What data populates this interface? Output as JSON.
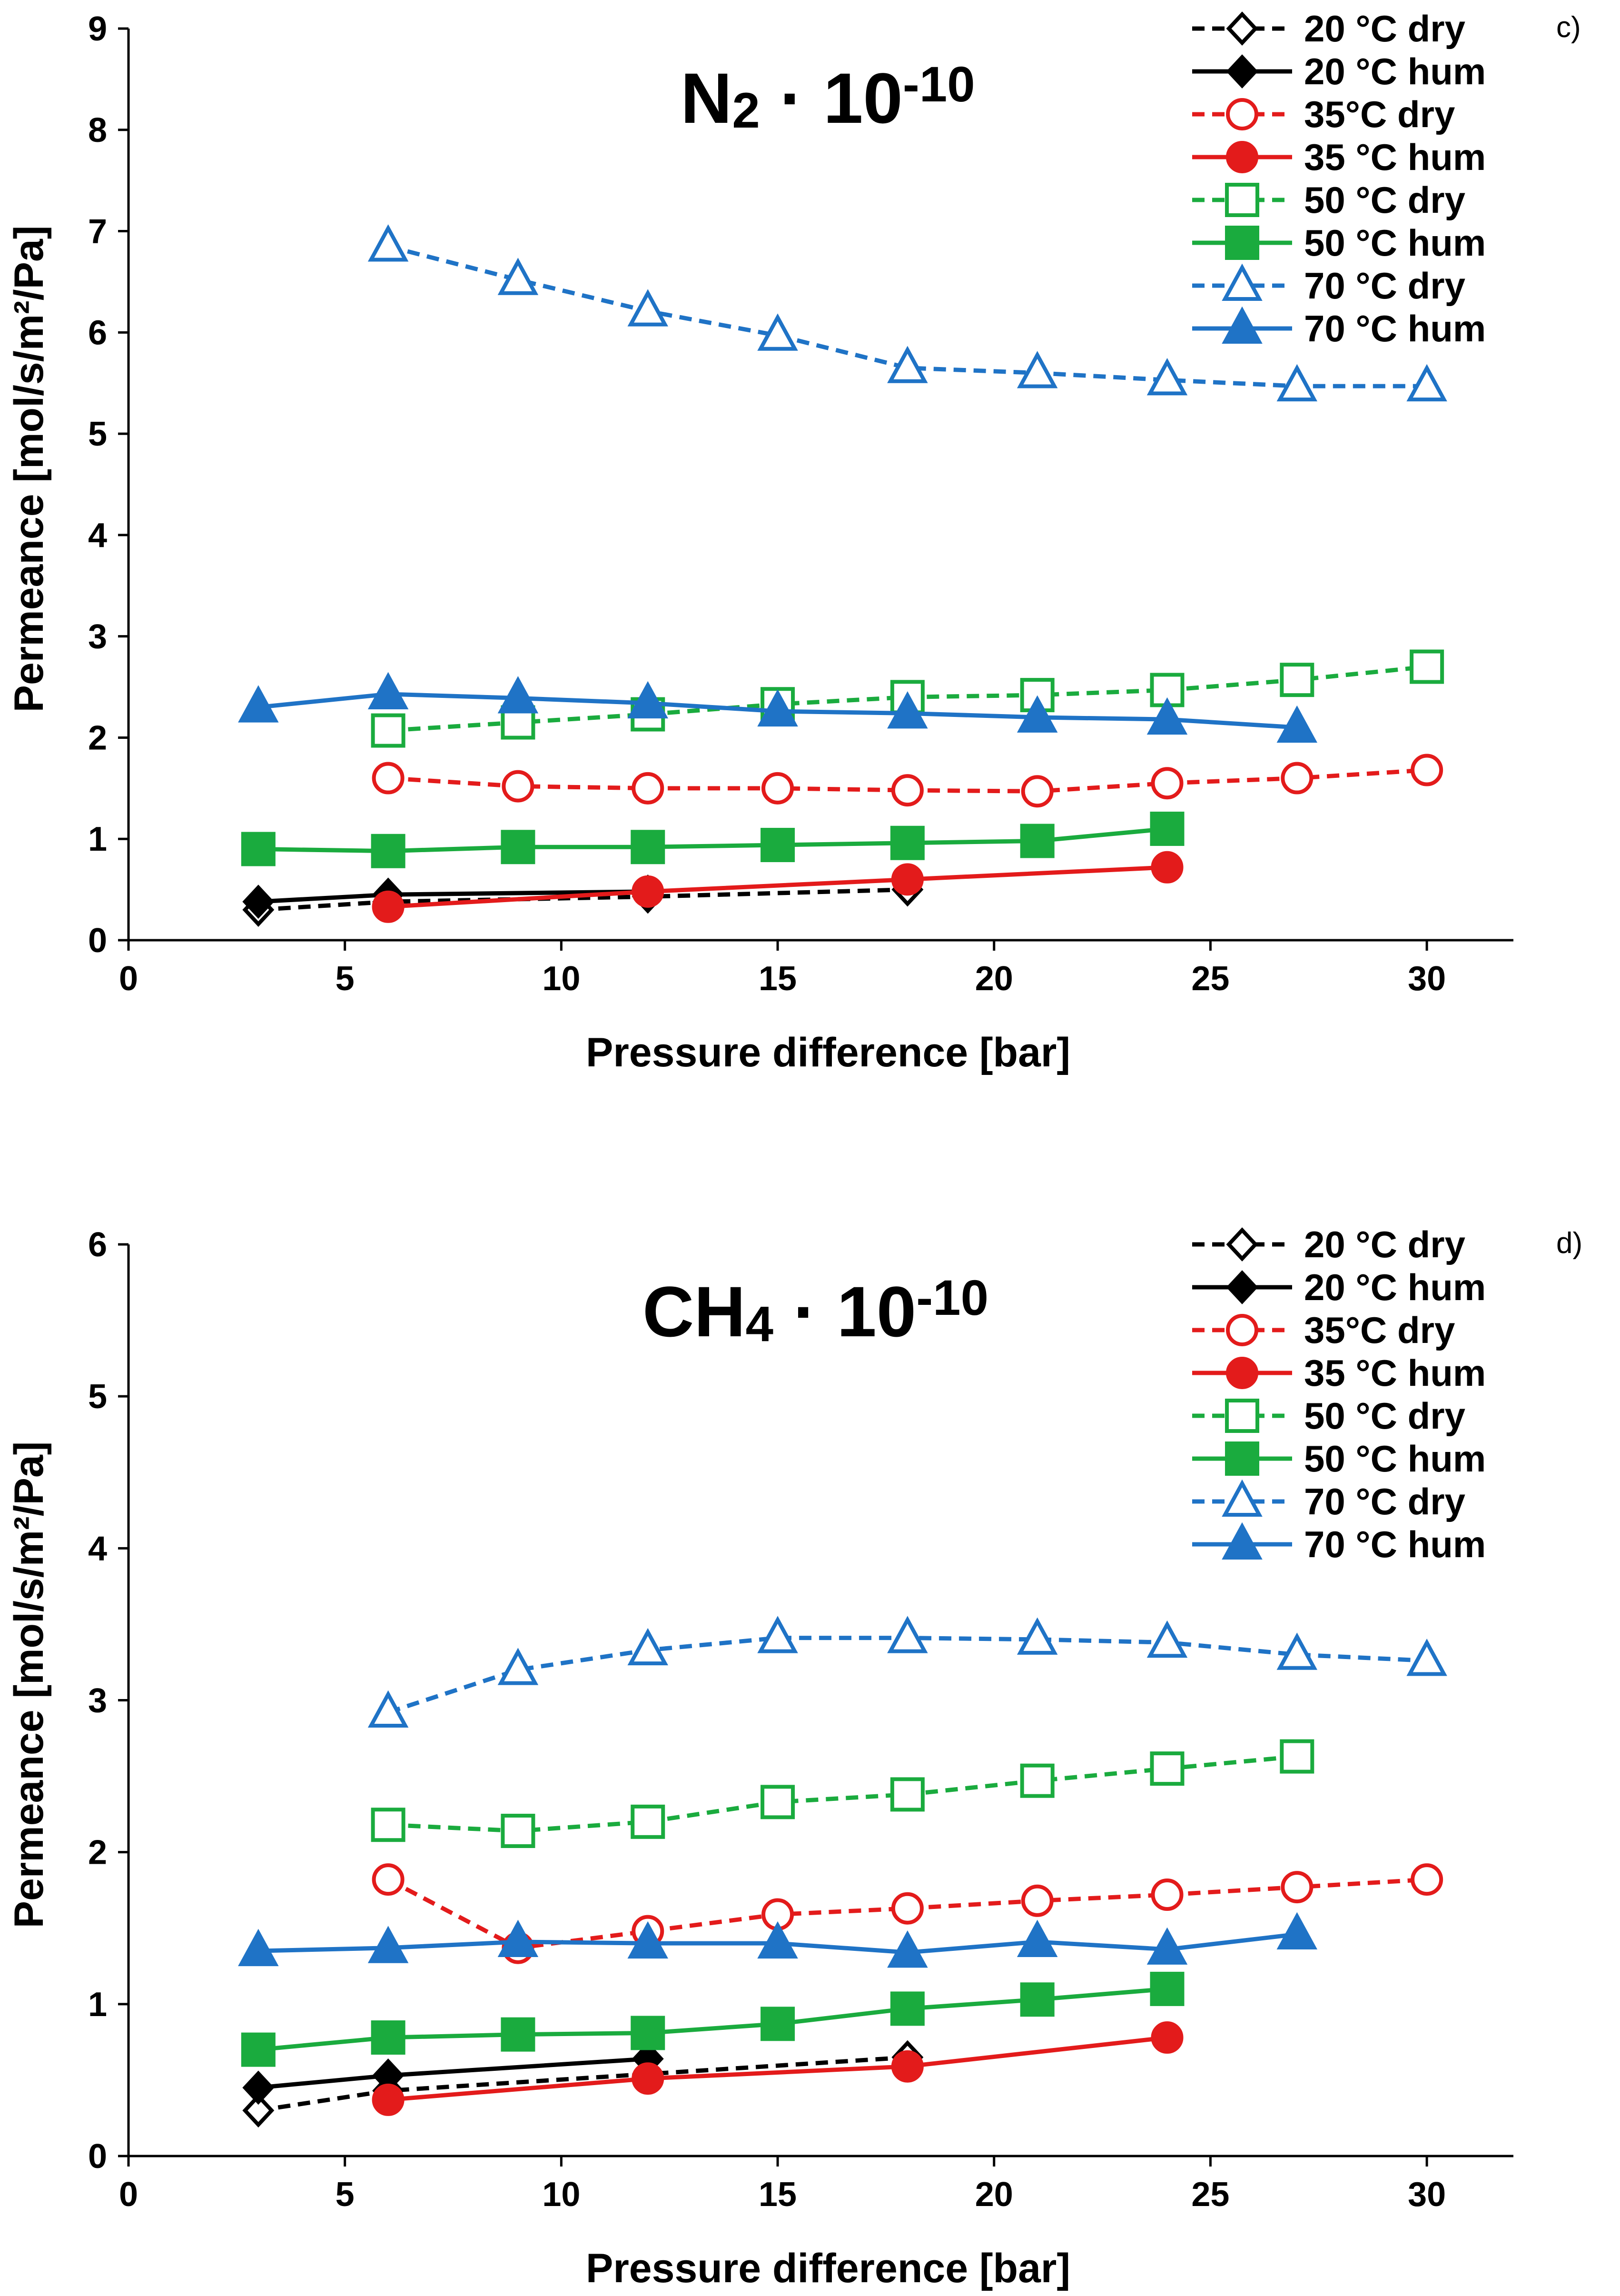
{
  "chart_data": [
    {
      "type": "line",
      "panel_label": "c)",
      "title": {
        "main": "N",
        "sub": "2",
        "mid": " · 10",
        "sup": "-10"
      },
      "xlabel": "Pressure difference [bar]",
      "ylabel": "Permeance [mol/s/m²/Pa]",
      "xlim": [
        0,
        32
      ],
      "ylim": [
        0,
        9
      ],
      "xticks": [
        0,
        5,
        10,
        15,
        20,
        25,
        30
      ],
      "yticks": [
        0,
        1,
        2,
        3,
        4,
        5,
        6,
        7,
        8,
        9
      ],
      "legend_position": "top-right",
      "series": [
        {
          "name": "20 °C dry",
          "color": "#000000",
          "dashed": true,
          "marker": "diamond",
          "filled": false,
          "x": [
            3,
            6,
            12,
            18
          ],
          "y": [
            0.3,
            0.38,
            0.43,
            0.5
          ]
        },
        {
          "name": "20 °C hum",
          "color": "#000000",
          "dashed": false,
          "marker": "diamond",
          "filled": true,
          "x": [
            3,
            6,
            12
          ],
          "y": [
            0.38,
            0.45,
            0.48
          ]
        },
        {
          "name": "35°C dry",
          "color": "#e31b1b",
          "dashed": true,
          "marker": "circle",
          "filled": false,
          "x": [
            6,
            9,
            12,
            15,
            18,
            21,
            24,
            27,
            30
          ],
          "y": [
            1.6,
            1.52,
            1.5,
            1.5,
            1.48,
            1.47,
            1.55,
            1.6,
            1.68
          ]
        },
        {
          "name": "35 °C hum",
          "color": "#e31b1b",
          "dashed": false,
          "marker": "circle",
          "filled": true,
          "x": [
            6,
            12,
            18,
            24
          ],
          "y": [
            0.33,
            0.48,
            0.6,
            0.72
          ]
        },
        {
          "name": "50 °C dry",
          "color": "#1aab3e",
          "dashed": true,
          "marker": "square",
          "filled": false,
          "x": [
            6,
            9,
            12,
            15,
            18,
            21,
            24,
            27,
            30
          ],
          "y": [
            2.07,
            2.15,
            2.23,
            2.33,
            2.4,
            2.42,
            2.47,
            2.57,
            2.7
          ]
        },
        {
          "name": "50 °C hum",
          "color": "#1aab3e",
          "dashed": false,
          "marker": "square",
          "filled": true,
          "x": [
            3,
            6,
            9,
            12,
            15,
            18,
            21,
            24
          ],
          "y": [
            0.9,
            0.88,
            0.92,
            0.92,
            0.94,
            0.96,
            0.98,
            1.1
          ]
        },
        {
          "name": "70 °C dry",
          "color": "#1f73c6",
          "dashed": true,
          "marker": "triangle",
          "filled": false,
          "x": [
            6,
            9,
            12,
            15,
            18,
            21,
            24,
            27,
            30
          ],
          "y": [
            6.85,
            6.52,
            6.21,
            5.97,
            5.65,
            5.6,
            5.53,
            5.47,
            5.47
          ]
        },
        {
          "name": "70 °C hum",
          "color": "#1f73c6",
          "dashed": false,
          "marker": "triangle",
          "filled": true,
          "x": [
            3,
            6,
            9,
            12,
            15,
            18,
            21,
            24,
            27
          ],
          "y": [
            2.3,
            2.43,
            2.39,
            2.34,
            2.26,
            2.24,
            2.2,
            2.18,
            2.1
          ]
        }
      ]
    },
    {
      "type": "line",
      "panel_label": "d)",
      "title": {
        "main": "CH",
        "sub": "4",
        "mid": " · 10",
        "sup": "-10"
      },
      "xlabel": "Pressure difference [bar]",
      "ylabel": "Permeance [mol/s/m²/Pa]",
      "xlim": [
        0,
        32
      ],
      "ylim": [
        0,
        6
      ],
      "xticks": [
        0,
        5,
        10,
        15,
        20,
        25,
        30
      ],
      "yticks": [
        0,
        1,
        2,
        3,
        4,
        5,
        6
      ],
      "legend_position": "top-right",
      "series": [
        {
          "name": "20 °C dry",
          "color": "#000000",
          "dashed": true,
          "marker": "diamond",
          "filled": false,
          "x": [
            3,
            6,
            12,
            18
          ],
          "y": [
            0.3,
            0.43,
            0.54,
            0.65
          ]
        },
        {
          "name": "20 °C hum",
          "color": "#000000",
          "dashed": false,
          "marker": "diamond",
          "filled": true,
          "x": [
            3,
            6,
            12
          ],
          "y": [
            0.45,
            0.53,
            0.64
          ]
        },
        {
          "name": "35°C dry",
          "color": "#e31b1b",
          "dashed": true,
          "marker": "circle",
          "filled": false,
          "x": [
            6,
            9,
            12,
            15,
            18,
            21,
            24,
            27,
            30
          ],
          "y": [
            1.82,
            1.37,
            1.48,
            1.59,
            1.63,
            1.68,
            1.72,
            1.77,
            1.82
          ]
        },
        {
          "name": "35 °C hum",
          "color": "#e31b1b",
          "dashed": false,
          "marker": "circle",
          "filled": true,
          "x": [
            6,
            12,
            18,
            24
          ],
          "y": [
            0.37,
            0.51,
            0.59,
            0.78
          ]
        },
        {
          "name": "50 °C dry",
          "color": "#1aab3e",
          "dashed": true,
          "marker": "square",
          "filled": false,
          "x": [
            6,
            9,
            12,
            15,
            18,
            21,
            24,
            27
          ],
          "y": [
            2.18,
            2.14,
            2.2,
            2.33,
            2.38,
            2.47,
            2.55,
            2.63
          ]
        },
        {
          "name": "50 °C hum",
          "color": "#1aab3e",
          "dashed": false,
          "marker": "square",
          "filled": true,
          "x": [
            3,
            6,
            9,
            12,
            15,
            18,
            21,
            24
          ],
          "y": [
            0.7,
            0.78,
            0.8,
            0.81,
            0.87,
            0.97,
            1.03,
            1.1
          ]
        },
        {
          "name": "70 °C dry",
          "color": "#1f73c6",
          "dashed": true,
          "marker": "triangle",
          "filled": false,
          "x": [
            6,
            9,
            12,
            15,
            18,
            21,
            24,
            27,
            30
          ],
          "y": [
            2.92,
            3.2,
            3.33,
            3.41,
            3.41,
            3.4,
            3.38,
            3.3,
            3.26
          ]
        },
        {
          "name": "70 °C hum",
          "color": "#1f73c6",
          "dashed": false,
          "marker": "triangle",
          "filled": true,
          "x": [
            3,
            6,
            9,
            12,
            15,
            18,
            21,
            24,
            27
          ],
          "y": [
            1.35,
            1.37,
            1.41,
            1.4,
            1.4,
            1.34,
            1.41,
            1.36,
            1.46
          ]
        }
      ]
    }
  ]
}
